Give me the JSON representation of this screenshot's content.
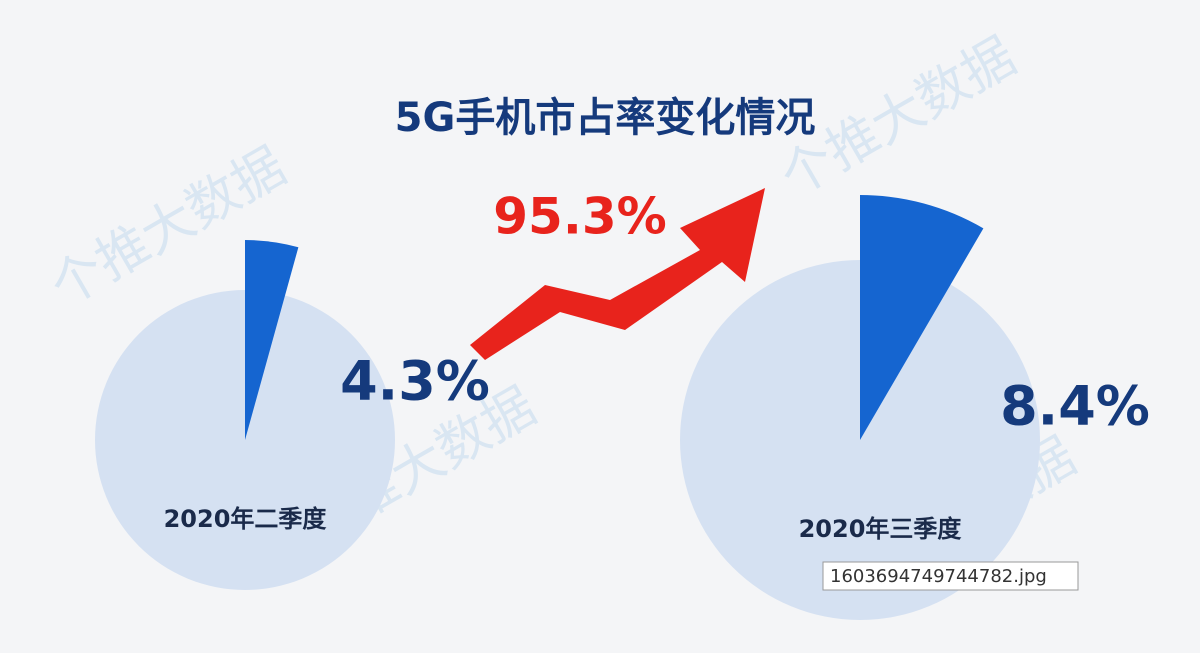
{
  "title": "5G手机市占率变化情况",
  "growth": {
    "value": 95.3,
    "label": "95.3%"
  },
  "watermark": "个推大数据",
  "tooltip": "1603694749744782.jpg",
  "chart_data": [
    {
      "type": "pie",
      "subtitle": "2020年二季度",
      "values": [
        4.3
      ],
      "value_labels": [
        "4.3%"
      ],
      "color": "#1565d0",
      "base_color": "#d5e1f2"
    },
    {
      "type": "pie",
      "subtitle": "2020年三季度",
      "values": [
        8.4
      ],
      "value_labels": [
        "8.4%"
      ],
      "color": "#1565d0",
      "base_color": "#d5e1f2"
    }
  ]
}
